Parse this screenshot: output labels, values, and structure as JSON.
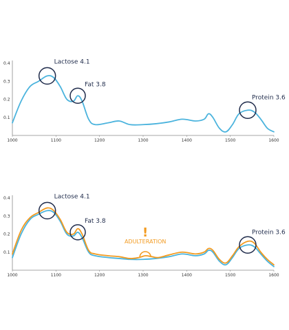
{
  "colors": {
    "sample_line": "#4ab3dd",
    "adulterated_line": "#f29a1f",
    "circle": "#1e2a4a",
    "adulteration": "#f29a1f",
    "axis": "#888888"
  },
  "chart_data": [
    {
      "type": "line",
      "title": "",
      "xlabel": "",
      "ylabel": "",
      "xlim": [
        1000,
        1600
      ],
      "ylim": [
        0,
        0.4
      ],
      "xticks": [
        "1000",
        "1100",
        "1200",
        "1300",
        "1400",
        "1500",
        "1600"
      ],
      "yticks": [
        "0.1",
        "0.2",
        "0.3",
        "0.4"
      ],
      "grid": false,
      "series": [
        {
          "color": "#4ab3dd",
          "x": [
            1000,
            1020,
            1040,
            1060,
            1080,
            1095,
            1110,
            1125,
            1140,
            1150,
            1160,
            1175,
            1190,
            1220,
            1245,
            1270,
            1300,
            1330,
            1360,
            1390,
            1420,
            1440,
            1450,
            1460,
            1475,
            1490,
            1505,
            1520,
            1540,
            1555,
            1570,
            1585,
            1600
          ],
          "y": [
            0.07,
            0.19,
            0.27,
            0.3,
            0.33,
            0.32,
            0.27,
            0.2,
            0.19,
            0.22,
            0.19,
            0.09,
            0.06,
            0.07,
            0.08,
            0.06,
            0.06,
            0.065,
            0.075,
            0.09,
            0.08,
            0.09,
            0.12,
            0.1,
            0.04,
            0.02,
            0.06,
            0.12,
            0.14,
            0.13,
            0.09,
            0.04,
            0.02
          ]
        }
      ],
      "annotations": [
        {
          "label": "Lactose 4.1",
          "x": 1080,
          "y": 0.33
        },
        {
          "label": "Fat 3.8",
          "x": 1150,
          "y": 0.22
        },
        {
          "label": "Protein 3.6",
          "x": 1540,
          "y": 0.14
        }
      ]
    },
    {
      "type": "line",
      "title": "",
      "xlabel": "",
      "ylabel": "",
      "xlim": [
        1000,
        1600
      ],
      "ylim": [
        0,
        0.4
      ],
      "xticks": [
        "1000",
        "1100",
        "1200",
        "1300",
        "1400",
        "1500",
        "1600"
      ],
      "yticks": [
        "0.1",
        "0.2",
        "0.3",
        "0.4"
      ],
      "grid": false,
      "series": [
        {
          "color": "#4ab3dd",
          "x": [
            1000,
            1020,
            1040,
            1060,
            1080,
            1095,
            1110,
            1125,
            1140,
            1150,
            1160,
            1175,
            1190,
            1220,
            1245,
            1270,
            1300,
            1330,
            1360,
            1390,
            1420,
            1440,
            1450,
            1460,
            1475,
            1490,
            1505,
            1520,
            1540,
            1555,
            1570,
            1585,
            1600
          ],
          "y": [
            0.07,
            0.2,
            0.28,
            0.31,
            0.33,
            0.32,
            0.27,
            0.2,
            0.19,
            0.21,
            0.18,
            0.1,
            0.08,
            0.07,
            0.065,
            0.06,
            0.06,
            0.065,
            0.075,
            0.09,
            0.08,
            0.09,
            0.11,
            0.1,
            0.05,
            0.03,
            0.07,
            0.12,
            0.14,
            0.13,
            0.09,
            0.05,
            0.02
          ]
        },
        {
          "color": "#f29a1f",
          "x": [
            1000,
            1020,
            1040,
            1060,
            1080,
            1095,
            1110,
            1125,
            1140,
            1150,
            1160,
            1175,
            1190,
            1220,
            1245,
            1270,
            1290,
            1305,
            1320,
            1335,
            1360,
            1390,
            1420,
            1440,
            1450,
            1460,
            1475,
            1490,
            1505,
            1520,
            1540,
            1555,
            1570,
            1585,
            1600
          ],
          "y": [
            0.09,
            0.22,
            0.29,
            0.32,
            0.345,
            0.33,
            0.28,
            0.21,
            0.2,
            0.23,
            0.2,
            0.11,
            0.09,
            0.08,
            0.075,
            0.065,
            0.07,
            0.08,
            0.075,
            0.07,
            0.085,
            0.1,
            0.09,
            0.1,
            0.12,
            0.11,
            0.06,
            0.04,
            0.08,
            0.13,
            0.16,
            0.15,
            0.1,
            0.06,
            0.03
          ]
        }
      ],
      "annotations": [
        {
          "label": "Lactose 4.1",
          "x": 1080,
          "y": 0.33
        },
        {
          "label": "Fat 3.8",
          "x": 1150,
          "y": 0.21
        },
        {
          "label": "Protein 3.6",
          "x": 1540,
          "y": 0.14
        },
        {
          "label": "ADULTERATION",
          "mark": "!",
          "x": 1305,
          "y": 0.08
        }
      ]
    }
  ]
}
